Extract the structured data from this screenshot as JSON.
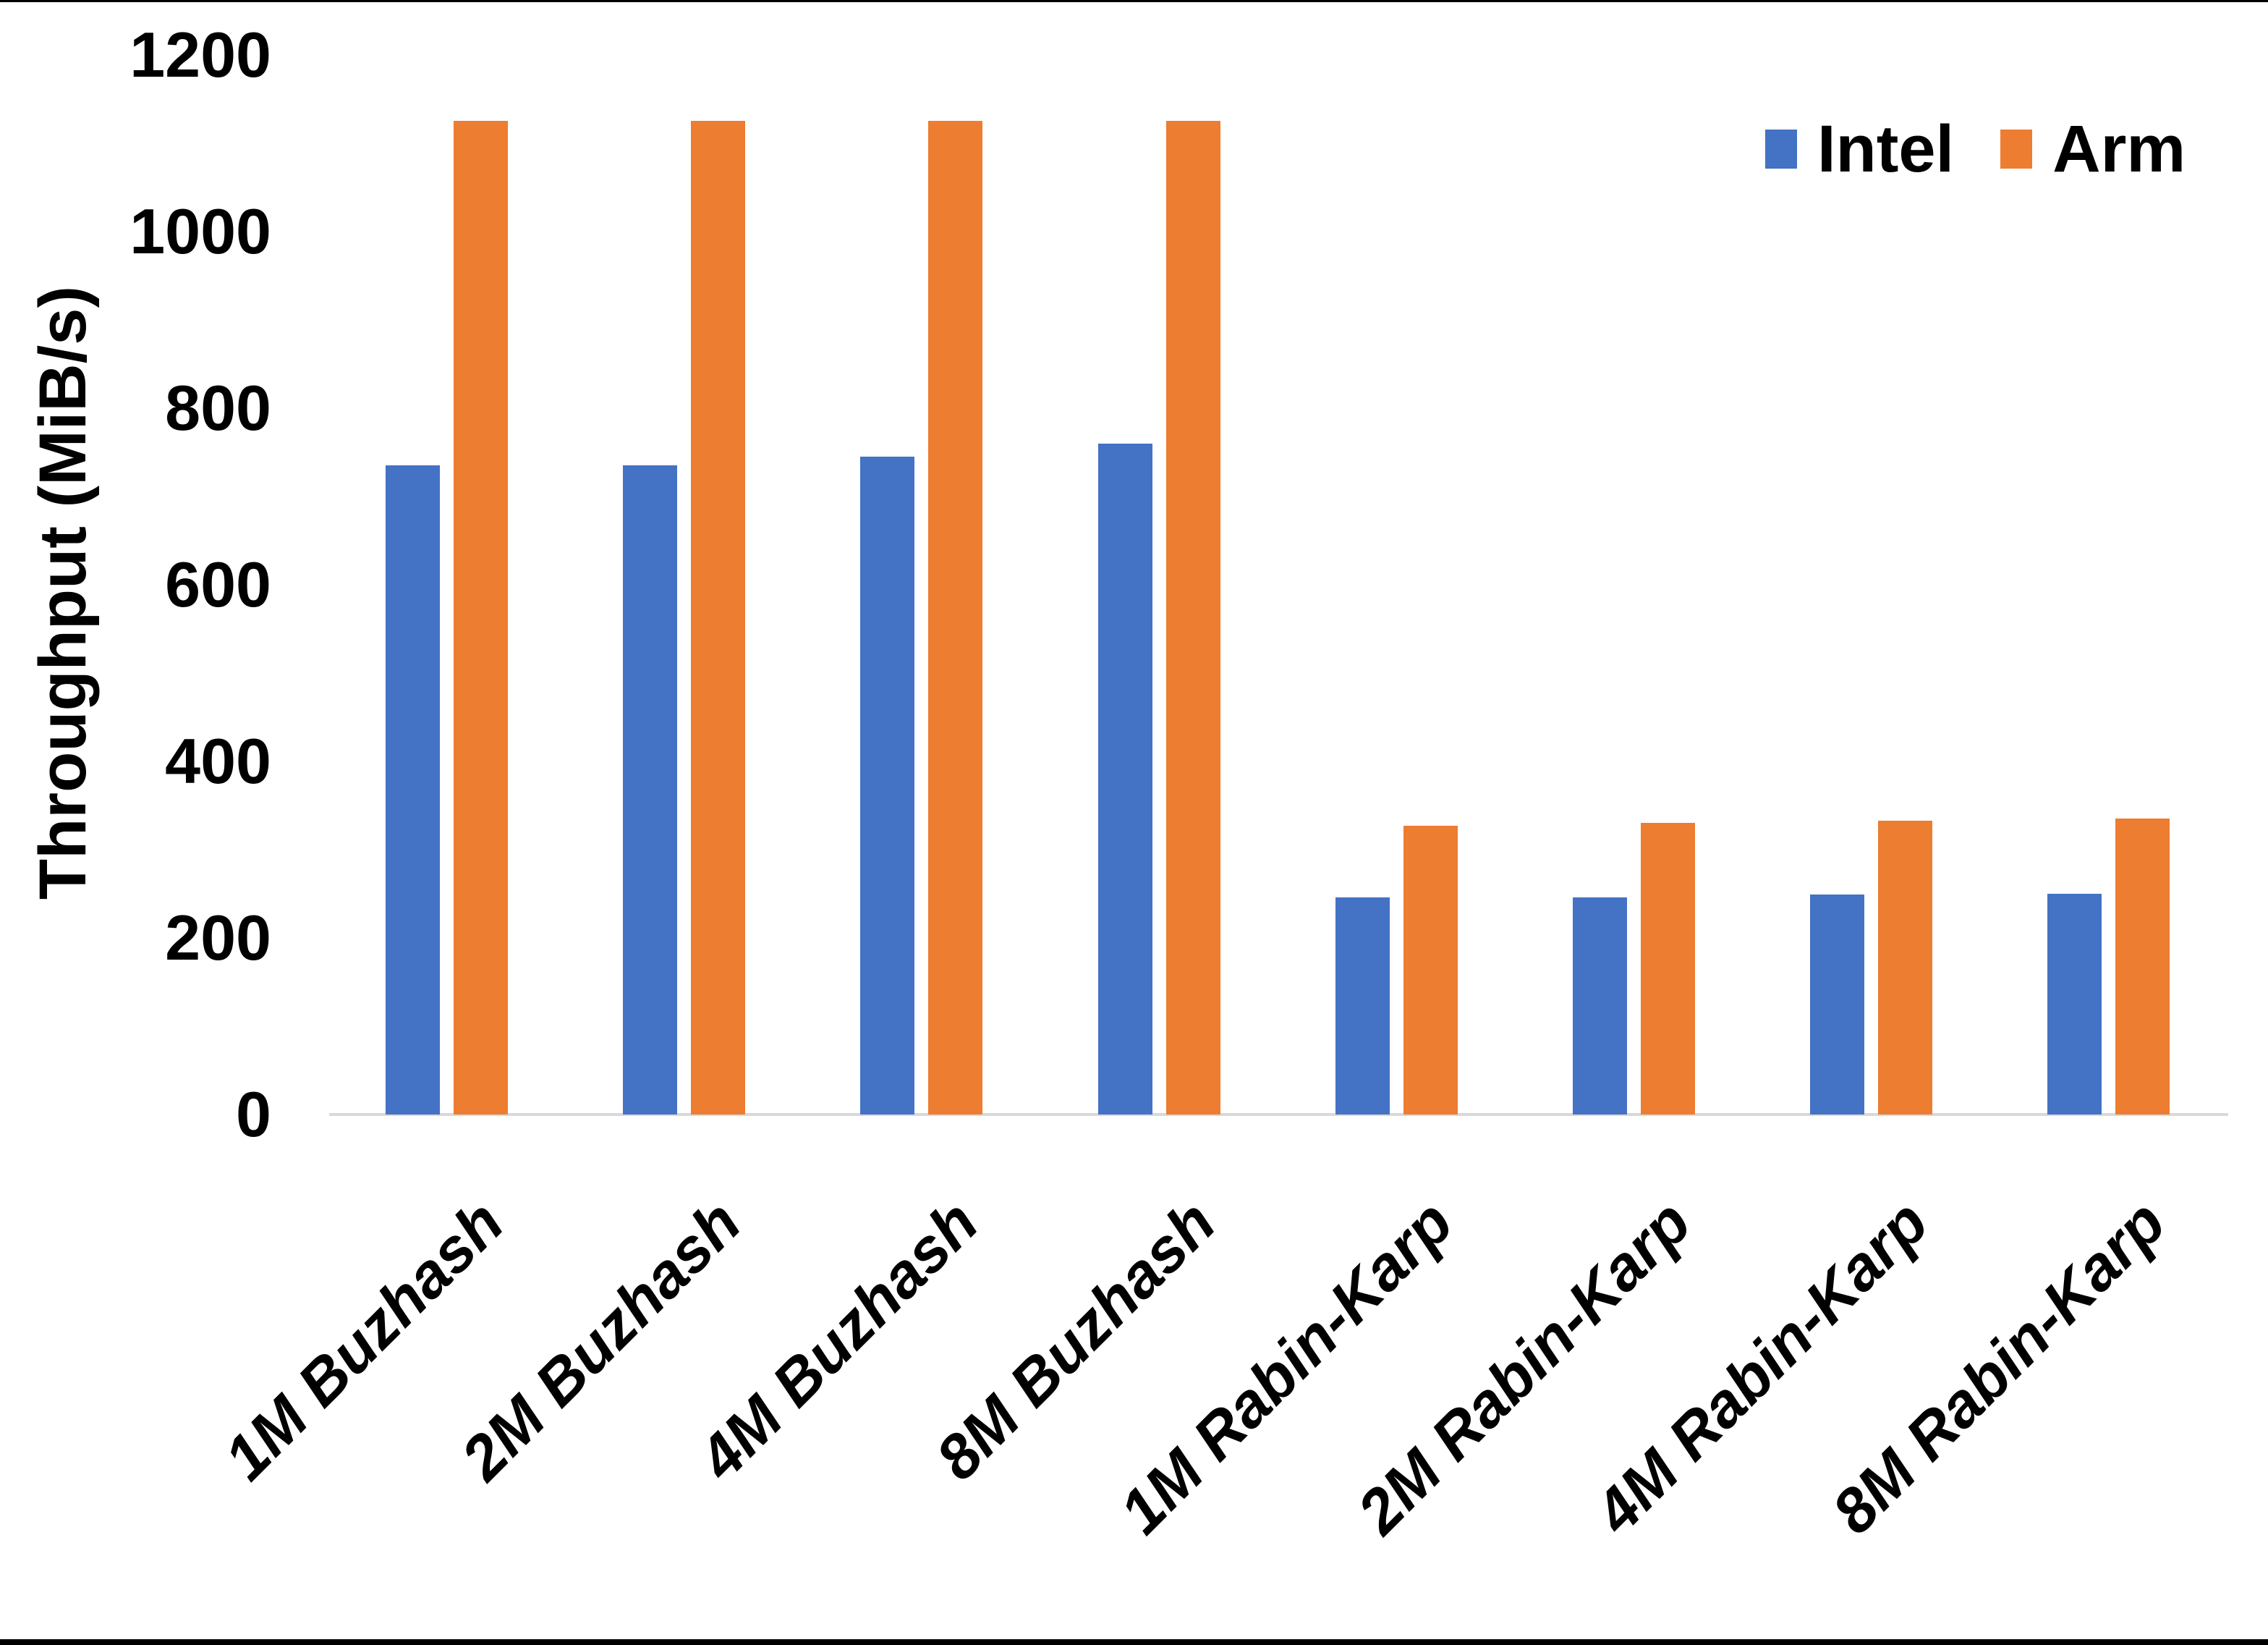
{
  "chart_data": {
    "type": "bar",
    "title": "",
    "categories": [
      "1M Buzhash",
      "2M Buzhash",
      "4M Buzhash",
      "8M Buzhash",
      "1M Rabin-Karp",
      "2M Rabin-Karp",
      "4M Rabin-Karp",
      "8M Rabin-Karp"
    ],
    "series": [
      {
        "name": "Intel",
        "color": "#4472C4",
        "values": [
          735,
          735,
          745,
          760,
          246,
          246,
          249,
          250
        ]
      },
      {
        "name": "Arm",
        "color": "#ED7D31",
        "values": [
          1125,
          1125,
          1125,
          1125,
          327,
          330,
          333,
          335
        ]
      }
    ],
    "xlabel": "",
    "ylabel": "Throughput (MiB/s)",
    "ylim": [
      0,
      1200
    ],
    "yticks": [
      0,
      200,
      400,
      600,
      800,
      1000,
      1200
    ],
    "grid": false,
    "legend_position": "top-right",
    "axis_line_color": "#D9D9D9",
    "text_color": "#000000",
    "background_color": "#FFFFFF"
  }
}
